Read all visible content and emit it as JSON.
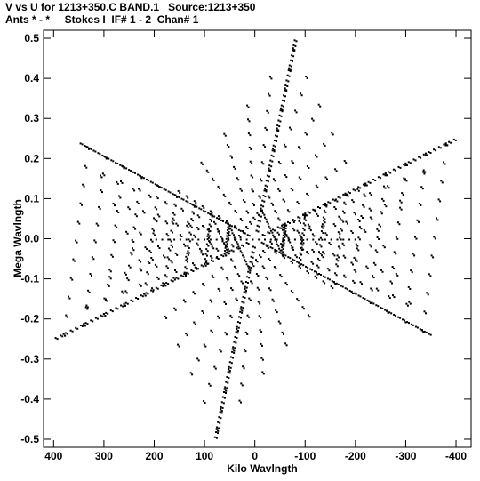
{
  "header": {
    "line1": "V vs U for 1213+350.C BAND.1   Source:1213+350",
    "line2": "Ants * - *     Stokes I  IF# 1 - 2  Chan# 1"
  },
  "chart_data": {
    "type": "scatter",
    "title": "V vs U for 1213+350.C BAND.1   Source:1213+350",
    "subtitle": "Ants * - *     Stokes I  IF# 1 - 2  Chan# 1",
    "xlabel": "Kilo Wavlngth",
    "ylabel": "Mega Wavlngth",
    "xlim": [
      420,
      -430
    ],
    "ylim": [
      -0.52,
      0.52
    ],
    "x_axis_inverted": true,
    "x_ticks": [
      400,
      300,
      200,
      100,
      0,
      -100,
      -200,
      -300,
      -400
    ],
    "x_tick_labels": [
      "400",
      "300",
      "200",
      "100",
      "0",
      "-100",
      "-200",
      "-300",
      "-400"
    ],
    "y_ticks": [
      0.5,
      0.4,
      0.3,
      0.2,
      0.1,
      0.0,
      -0.1,
      -0.2,
      -0.3,
      -0.4,
      -0.5
    ],
    "y_tick_labels": [
      "0.5",
      "0.4",
      "0.3",
      "0.2",
      "0.1",
      "0.0",
      "-0.1",
      "-0.2",
      "-0.3",
      "-0.4",
      "-0.5"
    ],
    "grid": false,
    "marker_color": "#000000",
    "pattern": "six-armed star (VLA Y-shaped array uv coverage)",
    "arm_tips_kilo_mega": [
      [
        -80,
        0.5
      ],
      [
        80,
        -0.5
      ],
      [
        -400,
        0.25
      ],
      [
        400,
        -0.25
      ],
      [
        -350,
        -0.24
      ],
      [
        350,
        0.24
      ]
    ],
    "sample_points": [
      [
        -80,
        0.5
      ],
      [
        -60,
        0.45
      ],
      [
        -40,
        0.4
      ],
      [
        -20,
        0.33
      ],
      [
        0,
        0.23
      ],
      [
        20,
        0.14
      ],
      [
        40,
        0.06
      ],
      [
        80,
        -0.5
      ],
      [
        60,
        -0.45
      ],
      [
        40,
        -0.4
      ],
      [
        20,
        -0.33
      ],
      [
        0,
        -0.23
      ],
      [
        -20,
        -0.14
      ],
      [
        -40,
        -0.06
      ],
      [
        -400,
        0.25
      ],
      [
        -300,
        0.24
      ],
      [
        -200,
        0.2
      ],
      [
        -150,
        0.14
      ],
      [
        -100,
        0.09
      ],
      [
        -50,
        0.04
      ],
      [
        400,
        -0.25
      ],
      [
        300,
        -0.24
      ],
      [
        200,
        -0.2
      ],
      [
        150,
        -0.14
      ],
      [
        100,
        -0.09
      ],
      [
        50,
        -0.04
      ],
      [
        -350,
        -0.24
      ],
      [
        -250,
        -0.18
      ],
      [
        -150,
        -0.11
      ],
      [
        -80,
        -0.05
      ],
      [
        350,
        0.24
      ],
      [
        250,
        0.18
      ],
      [
        150,
        0.11
      ],
      [
        80,
        0.05
      ],
      [
        -150,
        0.0
      ],
      [
        -100,
        0.0
      ],
      [
        -50,
        0.0
      ],
      [
        50,
        0.0
      ],
      [
        100,
        0.0
      ],
      [
        150,
        0.0
      ]
    ]
  }
}
